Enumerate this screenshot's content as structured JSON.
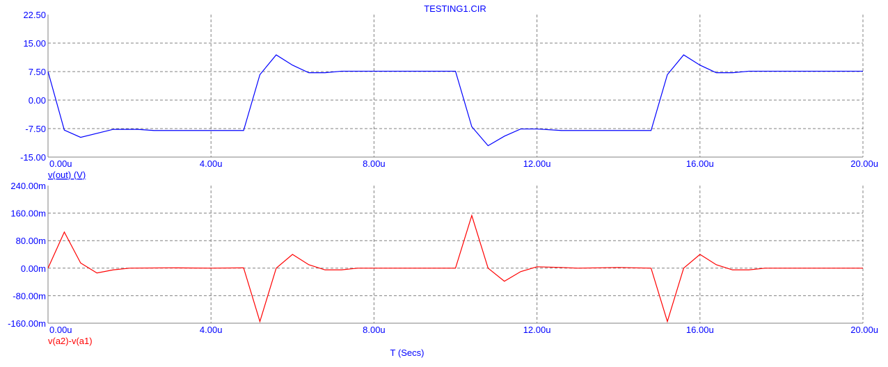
{
  "chart_data": [
    {
      "type": "line",
      "title": "TESTING1.CIR",
      "ylabel": "v(out) (V)",
      "xlim": [
        0,
        20
      ],
      "ylim": [
        -15,
        22.5
      ],
      "x_ticks": [
        "0.00u",
        "4.00u",
        "8.00u",
        "12.00u",
        "16.00u",
        "20.00u"
      ],
      "y_ticks": [
        "22.50",
        "15.00",
        "7.50",
        "0.00",
        "-7.50",
        "-15.00"
      ],
      "grid": true,
      "series": [
        {
          "name": "v(out) (V)",
          "color": "#0000ff",
          "x": [
            0,
            0.4,
            0.8,
            1.6,
            2.2,
            2.6,
            4.8,
            5.2,
            5.6,
            6.0,
            6.4,
            6.8,
            7.2,
            10.0,
            10.4,
            10.8,
            11.2,
            11.6,
            12.0,
            12.6,
            14.8,
            15.2,
            15.6,
            16.0,
            16.4,
            16.8,
            17.2,
            20.0
          ],
          "y": [
            7.5,
            -7.9,
            -9.8,
            -7.7,
            -7.7,
            -8.0,
            -8.0,
            6.7,
            11.9,
            9.2,
            7.2,
            7.2,
            7.6,
            7.6,
            -7.0,
            -12.0,
            -9.5,
            -7.6,
            -7.6,
            -8.0,
            -8.0,
            6.7,
            11.9,
            9.2,
            7.2,
            7.2,
            7.6,
            7.6
          ]
        }
      ]
    },
    {
      "type": "line",
      "xlabel": "T (Secs)",
      "ylabel": "v(a2)-v(a1)",
      "xlim": [
        0,
        20
      ],
      "ylim": [
        -0.16,
        0.24
      ],
      "x_ticks": [
        "0.00u",
        "4.00u",
        "8.00u",
        "12.00u",
        "16.00u",
        "20.00u"
      ],
      "y_ticks": [
        "240.00m",
        "160.00m",
        "80.00m",
        "0.00m",
        "-80.00m",
        "-160.00m"
      ],
      "grid": true,
      "series": [
        {
          "name": "v(a2)-v(a1)",
          "color": "#ff0000",
          "x": [
            0,
            0.4,
            0.8,
            1.2,
            1.6,
            2.0,
            3.0,
            4.0,
            4.8,
            5.2,
            5.6,
            6.0,
            6.4,
            6.8,
            7.2,
            7.6,
            10.0,
            10.4,
            10.8,
            11.2,
            11.6,
            12.0,
            12.6,
            13.0,
            14.0,
            14.8,
            15.2,
            15.6,
            16.0,
            16.4,
            16.8,
            17.2,
            17.6,
            20.0
          ],
          "y": [
            0,
            0.105,
            0.015,
            -0.014,
            -0.005,
            0,
            0.001,
            0,
            0.001,
            -0.155,
            0,
            0.04,
            0.01,
            -0.005,
            -0.005,
            0,
            0,
            0.153,
            0,
            -0.038,
            -0.01,
            0.004,
            0.002,
            0,
            0.002,
            0,
            -0.155,
            0,
            0.04,
            0.01,
            -0.005,
            -0.005,
            0,
            0
          ]
        }
      ]
    }
  ]
}
